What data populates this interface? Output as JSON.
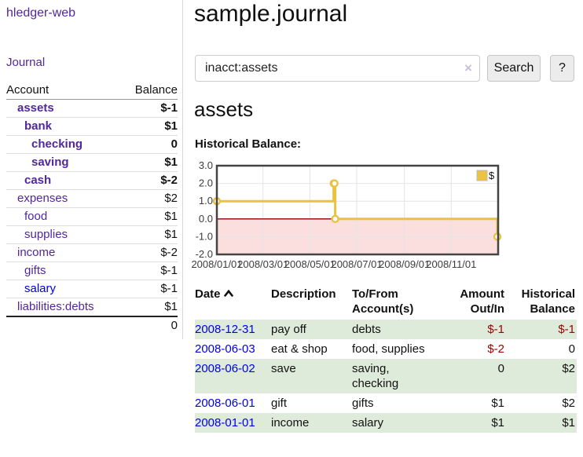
{
  "app": {
    "brand": "hledger-web",
    "nav_journal_label": "Journal"
  },
  "sidebar": {
    "col_account": "Account",
    "col_balance": "Balance",
    "accounts": [
      {
        "name": "assets",
        "depth": 1,
        "bold": true,
        "balance": "$-1"
      },
      {
        "name": "bank",
        "depth": 2,
        "bold": true,
        "balance": "$1"
      },
      {
        "name": "checking",
        "depth": 3,
        "bold": true,
        "balance": "0"
      },
      {
        "name": "saving",
        "depth": 3,
        "bold": true,
        "balance": "$1"
      },
      {
        "name": "cash",
        "depth": 2,
        "bold": true,
        "balance": "$-2"
      },
      {
        "name": "expenses",
        "depth": 1,
        "bold": false,
        "balance": "$2"
      },
      {
        "name": "food",
        "depth": 2,
        "bold": false,
        "balance": "$1"
      },
      {
        "name": "supplies",
        "depth": 2,
        "bold": false,
        "balance": "$1"
      },
      {
        "name": "income",
        "depth": 1,
        "bold": false,
        "balance": "$-2"
      },
      {
        "name": "gifts",
        "depth": 2,
        "bold": false,
        "balance": "$-1"
      },
      {
        "name": "salary",
        "depth": 2,
        "bold": false,
        "balance": "$-1",
        "link_color": "blue"
      },
      {
        "name": "liabilities:debts",
        "depth": 1,
        "bold": false,
        "balance": "$1"
      }
    ],
    "total": "0"
  },
  "main": {
    "title": "sample.journal",
    "search": {
      "value": "inacct:assets",
      "clear_icon": "×",
      "search_button": "Search",
      "help_button": "?"
    },
    "account_heading": "assets",
    "chart_label": "Historical Balance:"
  },
  "chart_data": {
    "type": "line",
    "style": "steps-with-markers",
    "title": "Historical Balance:",
    "series": [
      {
        "name": "$",
        "color": "#e9c23f",
        "points": [
          {
            "date": "2008/01/01",
            "t": 0,
            "y": 1
          },
          {
            "date": "2008/06/01",
            "t": 152,
            "y": 2
          },
          {
            "date": "2008/06/02",
            "t": 153,
            "y": 2
          },
          {
            "date": "2008/06/03",
            "t": 154,
            "y": 0
          },
          {
            "date": "2008/12/31",
            "t": 365,
            "y": -1
          }
        ]
      }
    ],
    "x_range_days": 366,
    "x_ticks": [
      {
        "t": 0,
        "label": "2008/01/01"
      },
      {
        "t": 60,
        "label": "2008/03/01"
      },
      {
        "t": 121,
        "label": "2008/05/01"
      },
      {
        "t": 182,
        "label": "2008/07/01"
      },
      {
        "t": 244,
        "label": "2008/09/01"
      },
      {
        "t": 305,
        "label": "2008/11/01"
      }
    ],
    "y_ticks": [
      {
        "v": 3,
        "label": "3.0"
      },
      {
        "v": 2,
        "label": "2.0"
      },
      {
        "v": 1,
        "label": "1.0"
      },
      {
        "v": 0,
        "label": "0.0"
      },
      {
        "v": -1,
        "label": "-1.0"
      },
      {
        "v": -2,
        "label": "-2.0"
      }
    ],
    "ylim": [
      -2,
      3
    ],
    "grid": true,
    "legend": {
      "position": "top-right",
      "label": "$",
      "swatch_color": "#edc240"
    },
    "colors": {
      "negative_region": "#fbdfdf",
      "zero_line": "#8b0000",
      "grid_line": "#e4e4e4",
      "plot_border": "#444444",
      "tick_text": "#3c3c3c"
    }
  },
  "register": {
    "headers": {
      "date": "Date",
      "description": "Description",
      "account": "To/From Account(s)",
      "amount": "Amount Out/In",
      "balance": "Historical Balance"
    },
    "rows": [
      {
        "date": "2008-12-31",
        "description": "pay off",
        "accounts": [
          "debts"
        ],
        "amount": "$-1",
        "balance": "$-1"
      },
      {
        "date": "2008-06-03",
        "description": "eat & shop",
        "accounts": [
          "food, supplies"
        ],
        "amount": "$-2",
        "balance": "0"
      },
      {
        "date": "2008-06-02",
        "description": "save",
        "accounts": [
          "saving,",
          "checking"
        ],
        "amount": "0",
        "balance": "$2"
      },
      {
        "date": "2008-06-01",
        "description": "gift",
        "accounts": [
          "gifts"
        ],
        "amount": "$1",
        "balance": "$2"
      },
      {
        "date": "2008-01-01",
        "description": "income",
        "accounts": [
          "salary"
        ],
        "amount": "$1",
        "balance": "$1"
      }
    ]
  }
}
